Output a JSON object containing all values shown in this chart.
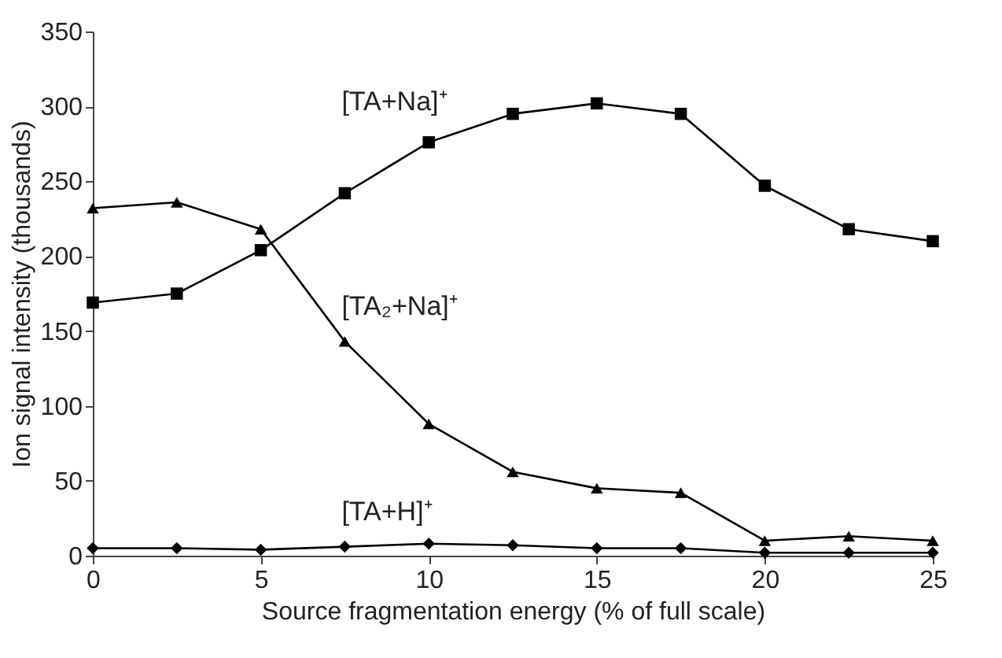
{
  "chart_data": {
    "type": "line",
    "xlabel": "Source fragmentation energy (% of full scale)",
    "ylabel": "Ion signal intensity (thousands)",
    "x": [
      0,
      2.5,
      5,
      7.5,
      10,
      12.5,
      15,
      17.5,
      20,
      22.5,
      25
    ],
    "series": [
      {
        "name": "[TA+Na]⁺",
        "color": "#000000",
        "marker": "square",
        "values": [
          169,
          175,
          204,
          242,
          276,
          295,
          302,
          295,
          247,
          218,
          210
        ]
      },
      {
        "name": "[TA₂+Na]⁺",
        "color": "#000000",
        "marker": "triangle",
        "values": [
          232,
          236,
          218,
          143,
          88,
          56,
          45,
          42,
          10,
          13,
          10
        ]
      },
      {
        "name": "[TA+H]⁺",
        "color": "#000000",
        "marker": "diamond",
        "values": [
          5,
          5,
          4,
          6,
          8,
          7,
          5,
          5,
          2,
          2,
          2
        ]
      }
    ],
    "xlim": [
      0,
      25
    ],
    "xticks": [
      0,
      5,
      10,
      15,
      20,
      25
    ],
    "ylim": [
      0,
      350
    ],
    "yticks": [
      0,
      50,
      100,
      150,
      200,
      250,
      300,
      350
    ],
    "grid": false,
    "legend": false,
    "line_style": "solid"
  }
}
